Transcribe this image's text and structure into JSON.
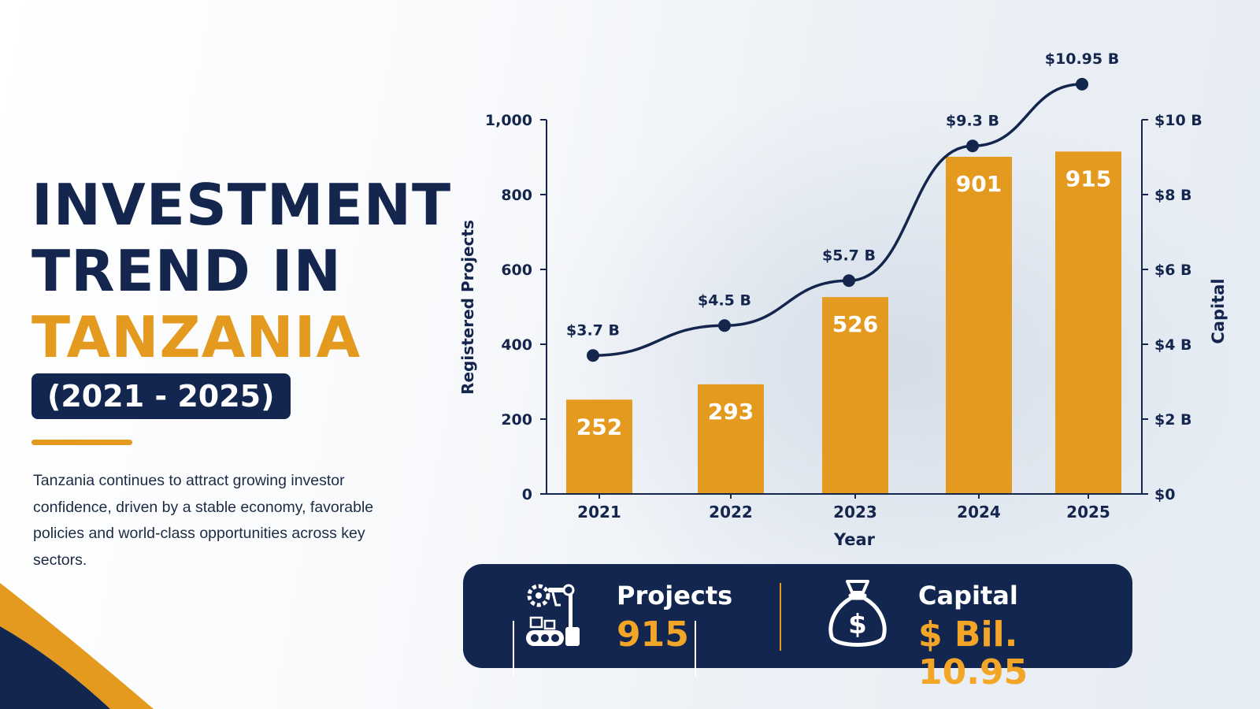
{
  "hero": {
    "title_line1": "INVESTMENT",
    "title_line2": "TREND IN",
    "title_line3": "TANZANIA",
    "year_range": "(2021 - 2025)",
    "description": "Tanzania continues to attract growing investor confidence, driven by a stable economy, favorable policies  and world-class opportunities across key sectors."
  },
  "colors": {
    "navy": "#13264f",
    "orange": "#e39a1e",
    "bar": "#e39a1e",
    "line": "#14264d"
  },
  "chart_data": {
    "type": "bar",
    "categories": [
      "2021",
      "2022",
      "2023",
      "2024",
      "2025"
    ],
    "series": [
      {
        "type": "bar",
        "axis": "left",
        "values": [
          252,
          293,
          526,
          901,
          915
        ],
        "labels": [
          "252",
          "293",
          "526",
          "901",
          "915"
        ]
      },
      {
        "type": "line",
        "axis": "right",
        "values": [
          3.7,
          4.5,
          5.7,
          9.3,
          10.95
        ],
        "labels": [
          "$3.7 B",
          "$4.5 B",
          "$5.7 B",
          "$9.3 B",
          "$10.95 B"
        ]
      }
    ],
    "xlabel": "Year",
    "ylabel": "Registered Projects",
    "y2label": "Capital",
    "ylim": [
      0,
      1000
    ],
    "y2lim": [
      0,
      10
    ],
    "yticks": [
      "0",
      "200",
      "400",
      "600",
      "800",
      "1,000"
    ],
    "y2ticks": [
      "$0",
      "$2 B",
      "$4 B",
      "$6 B",
      "$8 B",
      "$10 B"
    ],
    "grid": false
  },
  "stats": {
    "projects_label": "Projects",
    "projects_value": "915",
    "projects_icon": "factory-robot-icon",
    "capital_label": "Capital",
    "capital_value": "$ Bil. 10.95",
    "capital_icon": "money-bag-icon"
  }
}
